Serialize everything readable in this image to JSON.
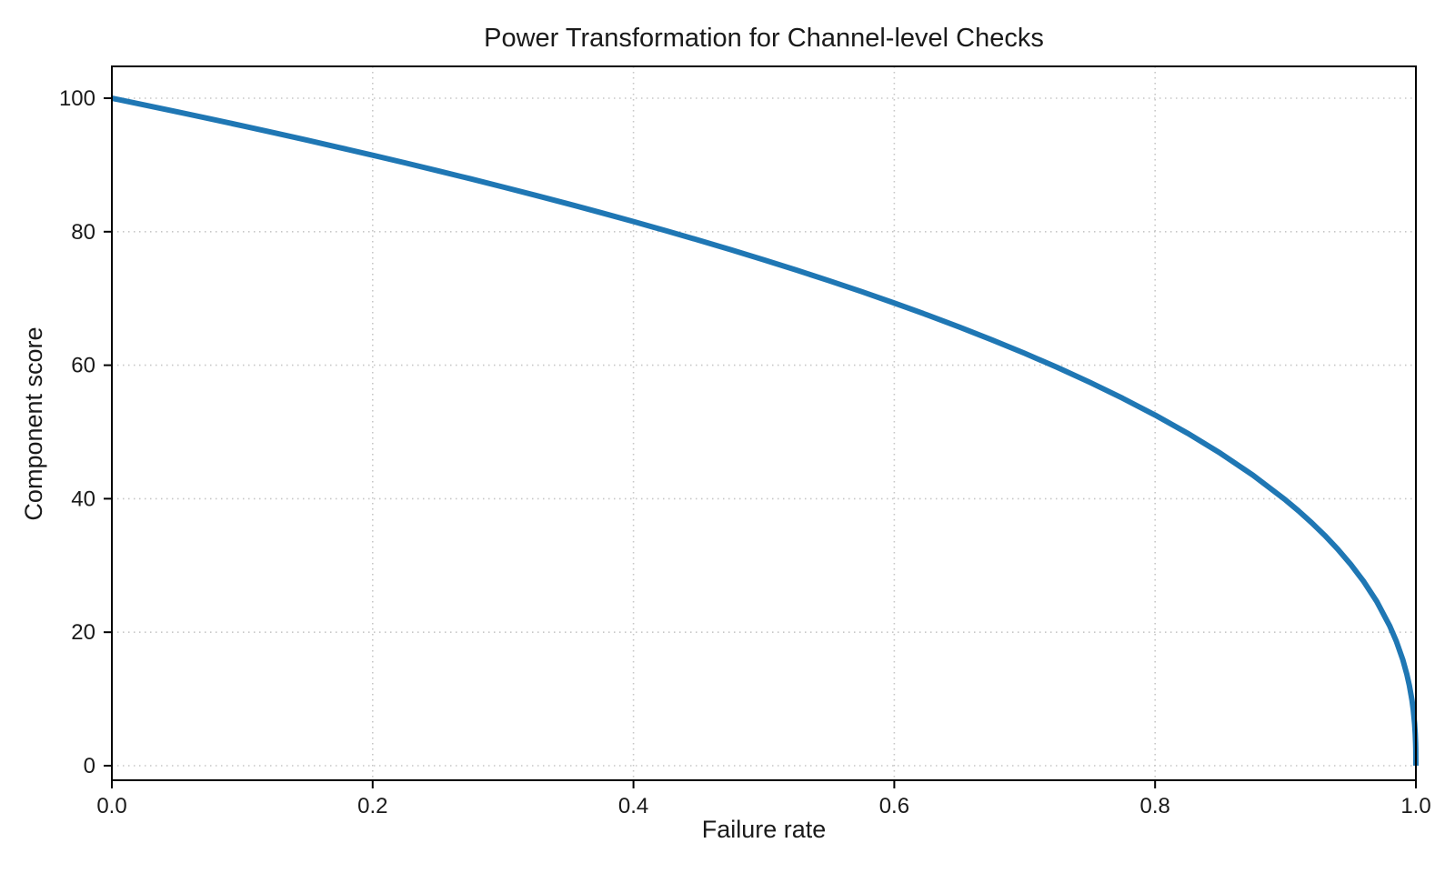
{
  "style": {
    "background": "#ffffff",
    "line_color": "#1f77b4",
    "grid_color": "#c6c6c6",
    "spine_color": "#000000",
    "tick_color": "#000000",
    "text_color": "#1a1a1a"
  },
  "chart_data": {
    "type": "line",
    "title": "Power Transformation for Channel-level Checks",
    "xlabel": "Failure rate",
    "ylabel": "Component score",
    "xlim": [
      0.0,
      1.0
    ],
    "ylim": [
      0,
      100
    ],
    "grid": {
      "visible": true,
      "style": "dotted",
      "position": "both-axes"
    },
    "legend": "none",
    "x_ticks": [
      {
        "value": 0.0,
        "label": "0.0"
      },
      {
        "value": 0.2,
        "label": "0.2"
      },
      {
        "value": 0.4,
        "label": "0.4"
      },
      {
        "value": 0.6,
        "label": "0.6"
      },
      {
        "value": 0.8,
        "label": "0.8"
      },
      {
        "value": 1.0,
        "label": "1.0"
      }
    ],
    "y_ticks": [
      {
        "value": 0,
        "label": "0"
      },
      {
        "value": 20,
        "label": "20"
      },
      {
        "value": 40,
        "label": "40"
      },
      {
        "value": 60,
        "label": "60"
      },
      {
        "value": 80,
        "label": "80"
      },
      {
        "value": 100,
        "label": "100"
      }
    ],
    "series": [
      {
        "name": "component-score-vs-failure-rate",
        "color": "#1f77b4",
        "line_width": 6,
        "power_exponent": 0.4,
        "x": [
          0,
          0.025,
          0.05,
          0.075,
          0.1,
          0.125,
          0.15,
          0.175,
          0.2,
          0.225,
          0.25,
          0.275,
          0.3,
          0.325,
          0.35,
          0.375,
          0.4,
          0.425,
          0.45,
          0.475,
          0.5,
          0.525,
          0.55,
          0.575,
          0.6,
          0.625,
          0.65,
          0.675,
          0.7,
          0.725,
          0.75,
          0.775,
          0.8,
          0.825,
          0.85,
          0.875,
          0.9,
          0.91,
          0.92,
          0.93,
          0.94,
          0.95,
          0.96,
          0.97,
          0.98,
          0.985,
          0.99,
          0.993,
          0.995,
          0.997,
          0.998,
          0.999,
          0.9995,
          0.9998,
          0.9999,
          1
        ],
        "y": [
          100,
          98.99,
          97.97,
          96.93,
          95.87,
          94.8,
          93.71,
          92.59,
          91.46,
          90.31,
          89.13,
          87.93,
          86.7,
          85.45,
          84.17,
          82.86,
          81.52,
          80.14,
          78.73,
          77.28,
          75.79,
          74.25,
          72.66,
          71.02,
          69.31,
          67.55,
          65.71,
          63.79,
          61.78,
          59.67,
          57.43,
          55.06,
          52.53,
          49.8,
          46.82,
          43.53,
          39.81,
          38.17,
          36.41,
          34.52,
          32.45,
          30.17,
          27.59,
          24.6,
          20.91,
          18.64,
          15.85,
          13.74,
          12.01,
          9.79,
          8.33,
          6.31,
          4.78,
          3.32,
          2.51,
          0
        ]
      }
    ]
  }
}
